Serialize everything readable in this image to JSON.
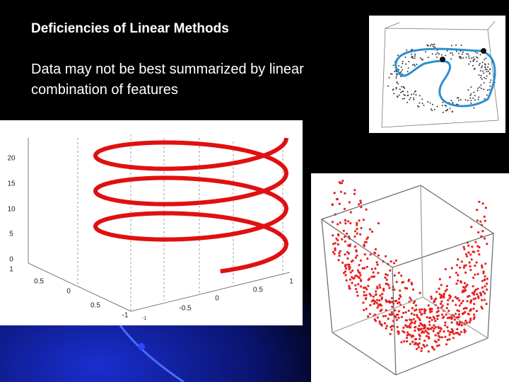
{
  "header": {
    "title": "Deficiencies of Linear Methods"
  },
  "body": {
    "lines": [
      "Data may not be best summarized by linear",
      "combination of features"
    ]
  },
  "figures": {
    "helix": {
      "tick_labels": [
        "20",
        "15",
        "10",
        "5",
        "0",
        "1",
        "0.5",
        "0",
        "0.5",
        "-1",
        "-1",
        "-0.5",
        "0",
        "0.5",
        "1"
      ]
    }
  }
}
